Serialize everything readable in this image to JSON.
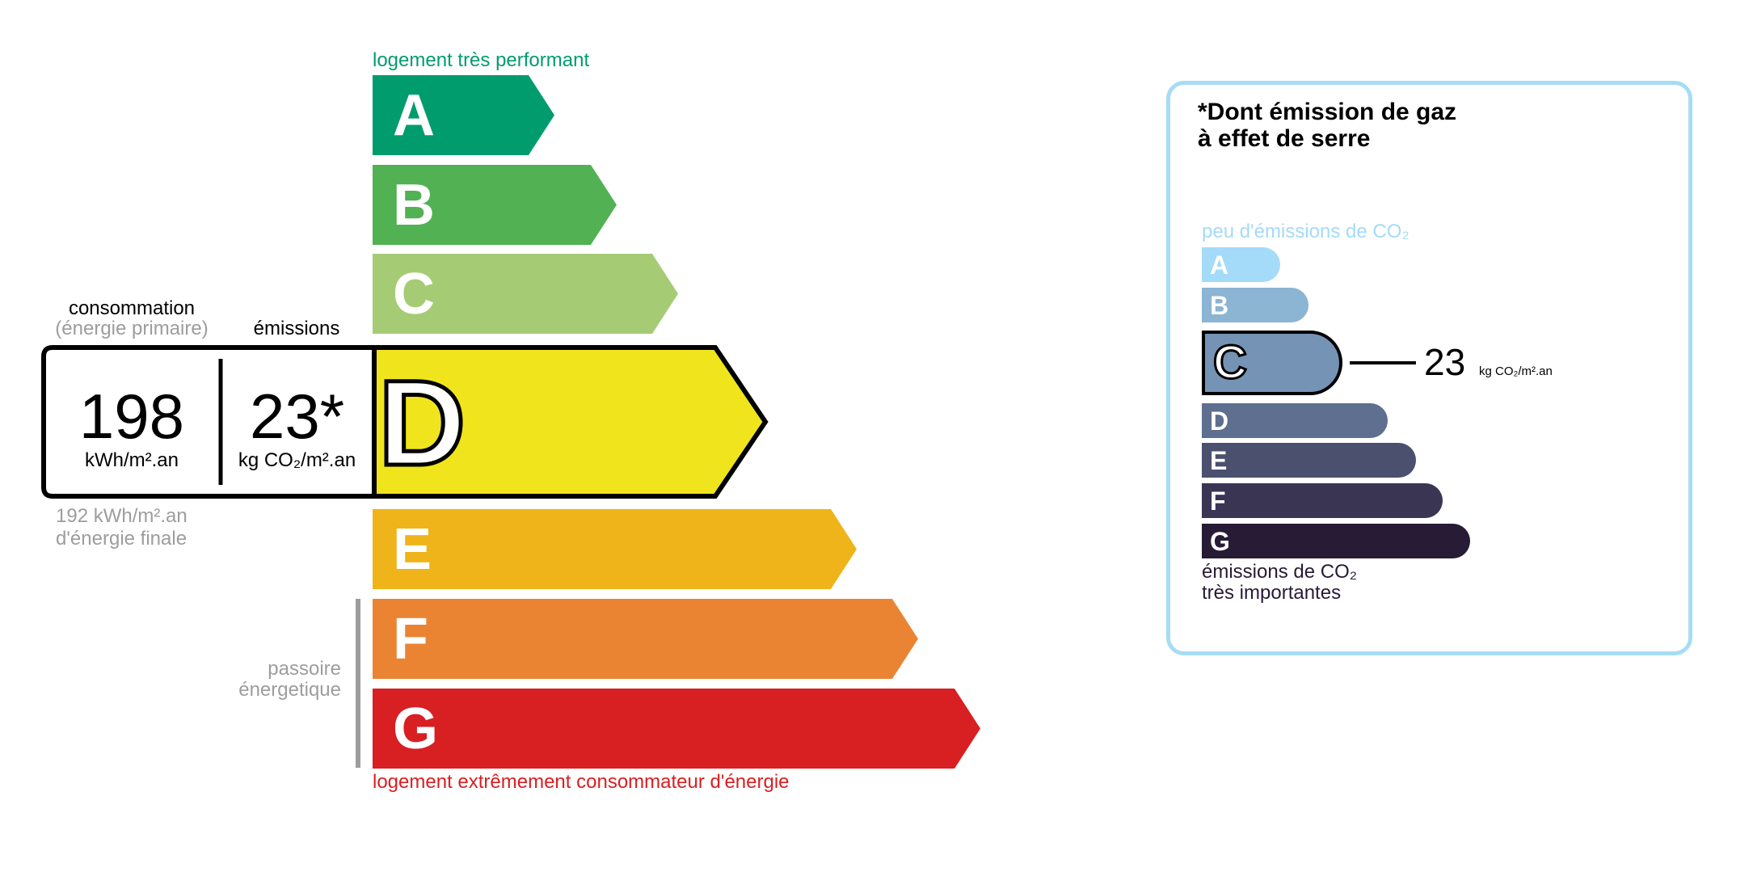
{
  "energy": {
    "top_label": "logement très performant",
    "bottom_label": "logement extrêmement consommateur d'énergie",
    "passoire_label": [
      "passoire",
      "énergetique"
    ],
    "classes": [
      {
        "letter": "A",
        "color": "#009c6d"
      },
      {
        "letter": "B",
        "color": "#52b153"
      },
      {
        "letter": "C",
        "color": "#a5cc74"
      },
      {
        "letter": "D",
        "color": "#f0e51c"
      },
      {
        "letter": "E",
        "color": "#efb41a"
      },
      {
        "letter": "F",
        "color": "#ea8433"
      },
      {
        "letter": "G",
        "color": "#d81f22"
      }
    ],
    "current_class": "D",
    "consumption_label": "consommation",
    "consumption_sub": "(énergie primaire)",
    "emissions_label": "émissions",
    "consumption_value": "198",
    "consumption_unit": "kWh/m².an",
    "emissions_value": "23*",
    "emissions_unit": "kg CO₂/m².an",
    "final_energy_value": "192 kWh/m².an",
    "final_energy_label": "d'énergie finale"
  },
  "ges": {
    "title_line1": "*Dont émission de gaz",
    "title_line2": "à effet de serre",
    "top_label": "peu d'émissions de CO₂",
    "bottom_label_line1": "émissions de CO₂",
    "bottom_label_line2": "très importantes",
    "classes": [
      {
        "letter": "A",
        "color": "#a4dbf8"
      },
      {
        "letter": "B",
        "color": "#8cb4d3"
      },
      {
        "letter": "C",
        "color": "#7593b4"
      },
      {
        "letter": "D",
        "color": "#5e6f8f"
      },
      {
        "letter": "E",
        "color": "#4b506f"
      },
      {
        "letter": "F",
        "color": "#393553"
      },
      {
        "letter": "G",
        "color": "#281b35"
      }
    ],
    "current_class": "C",
    "value": "23",
    "unit": "kg CO₂/m².an",
    "border_color": "#a6dcf5"
  }
}
